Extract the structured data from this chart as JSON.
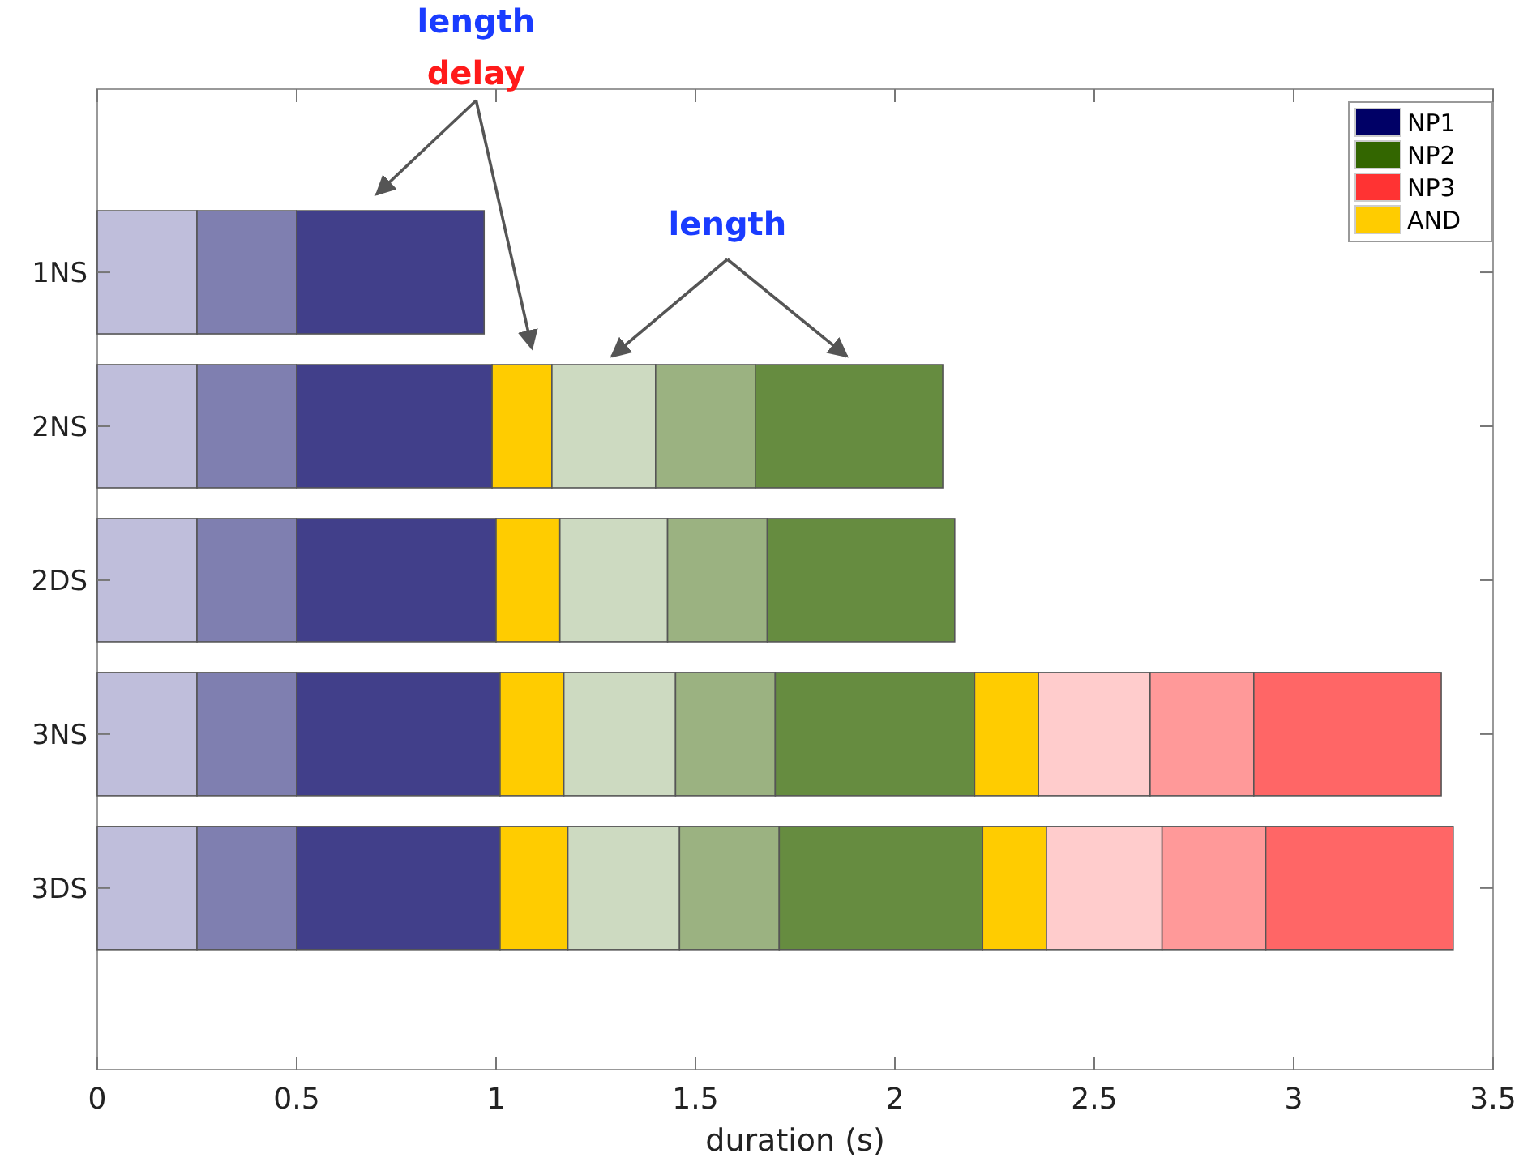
{
  "chart_data": {
    "type": "bar",
    "orientation": "horizontal",
    "stacked": true,
    "xlabel": "duration (s)",
    "categories": [
      "1NS",
      "2NS",
      "2DS",
      "3NS",
      "3DS"
    ],
    "xlim": [
      0,
      3.5
    ],
    "xticks": [
      0,
      0.5,
      1,
      1.5,
      2,
      2.5,
      3,
      3.5
    ],
    "legend": "top right",
    "grid": false,
    "series": [
      {
        "color": "#bfbedb",
        "values": [
          0.25,
          0.25,
          0.25,
          0.25,
          0.25
        ]
      },
      {
        "color": "#7f7fb0",
        "values": [
          0.25,
          0.25,
          0.25,
          0.25,
          0.25
        ]
      },
      {
        "color": "#413f8a",
        "values": [
          0.47,
          0.49,
          0.5,
          0.51,
          0.51
        ]
      },
      {
        "color": "#ffcc00",
        "values": [
          null,
          0.15,
          0.16,
          0.16,
          0.17
        ]
      },
      {
        "color": "#cddac1",
        "values": [
          null,
          0.26,
          0.27,
          0.28,
          0.28
        ]
      },
      {
        "color": "#9bb281",
        "values": [
          null,
          0.25,
          0.25,
          0.25,
          0.25
        ]
      },
      {
        "color": "#668c40",
        "values": [
          null,
          0.47,
          0.47,
          0.5,
          0.51
        ]
      },
      {
        "color": "#ffcc00",
        "values": [
          null,
          null,
          null,
          0.16,
          0.16
        ]
      },
      {
        "color": "#ffcccc",
        "values": [
          null,
          null,
          null,
          0.28,
          0.29
        ]
      },
      {
        "color": "#ff9999",
        "values": [
          null,
          null,
          null,
          0.26,
          0.26
        ]
      },
      {
        "color": "#ff6666",
        "values": [
          null,
          null,
          null,
          0.47,
          0.47
        ]
      },
      {
        "name": "NP1",
        "color": "#000066",
        "values": [
          null,
          null,
          null,
          null,
          null
        ]
      },
      {
        "name": "NP2",
        "color": "#336600",
        "values": [
          null,
          null,
          null,
          null,
          null
        ]
      },
      {
        "name": "NP3",
        "color": "#ff3333",
        "values": [
          null,
          null,
          null,
          null,
          null
        ]
      },
      {
        "name": "AND",
        "color": "#ffcc00",
        "values": [
          null,
          null,
          null,
          null,
          null
        ]
      }
    ],
    "annotations": [
      "length",
      "delay",
      "length"
    ]
  }
}
